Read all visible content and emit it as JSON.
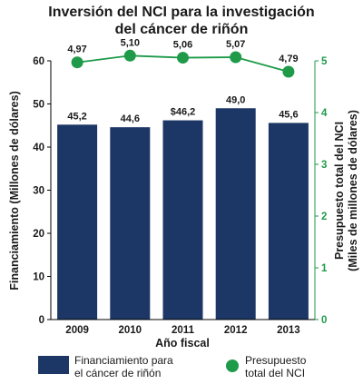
{
  "chart_data": {
    "type": "bar",
    "title": [
      "Inversión del NCI para la investigación",
      "del cáncer de riñón"
    ],
    "categories": [
      "2009",
      "2010",
      "2011",
      "2012",
      "2013"
    ],
    "xlabel": "Año fiscal",
    "ylabel_left": "Financiamiento (Millones de dólares)",
    "ylabel_right": [
      "Presupuesto total del NCI",
      "(Miles de millones de dólares)"
    ],
    "ylim_left": [
      0,
      60
    ],
    "yticks_left": [
      "0",
      "10",
      "20",
      "30",
      "40",
      "50",
      "60"
    ],
    "ylim_right": [
      0,
      5
    ],
    "yticks_right": [
      "0",
      "1",
      "2",
      "3",
      "4",
      "5"
    ],
    "series": [
      {
        "name": [
          "Financiamiento para",
          "el cáncer de riñón"
        ],
        "kind": "bar",
        "axis": "left",
        "values": [
          45.2,
          44.6,
          46.2,
          49.0,
          45.6
        ],
        "labels": [
          "45,2",
          "44,6",
          "$46,2",
          "49,0",
          "45,6"
        ],
        "color": "#1c3766"
      },
      {
        "name": [
          "Presupuesto",
          "total del NCI"
        ],
        "kind": "line",
        "axis": "right",
        "values": [
          4.97,
          5.1,
          5.06,
          5.07,
          4.79
        ],
        "labels": [
          "4,97",
          "5,10",
          "5,06",
          "5,07",
          "4,79"
        ],
        "color": "#1e9a49"
      }
    ],
    "grid": false,
    "legend_position": "bottom"
  }
}
